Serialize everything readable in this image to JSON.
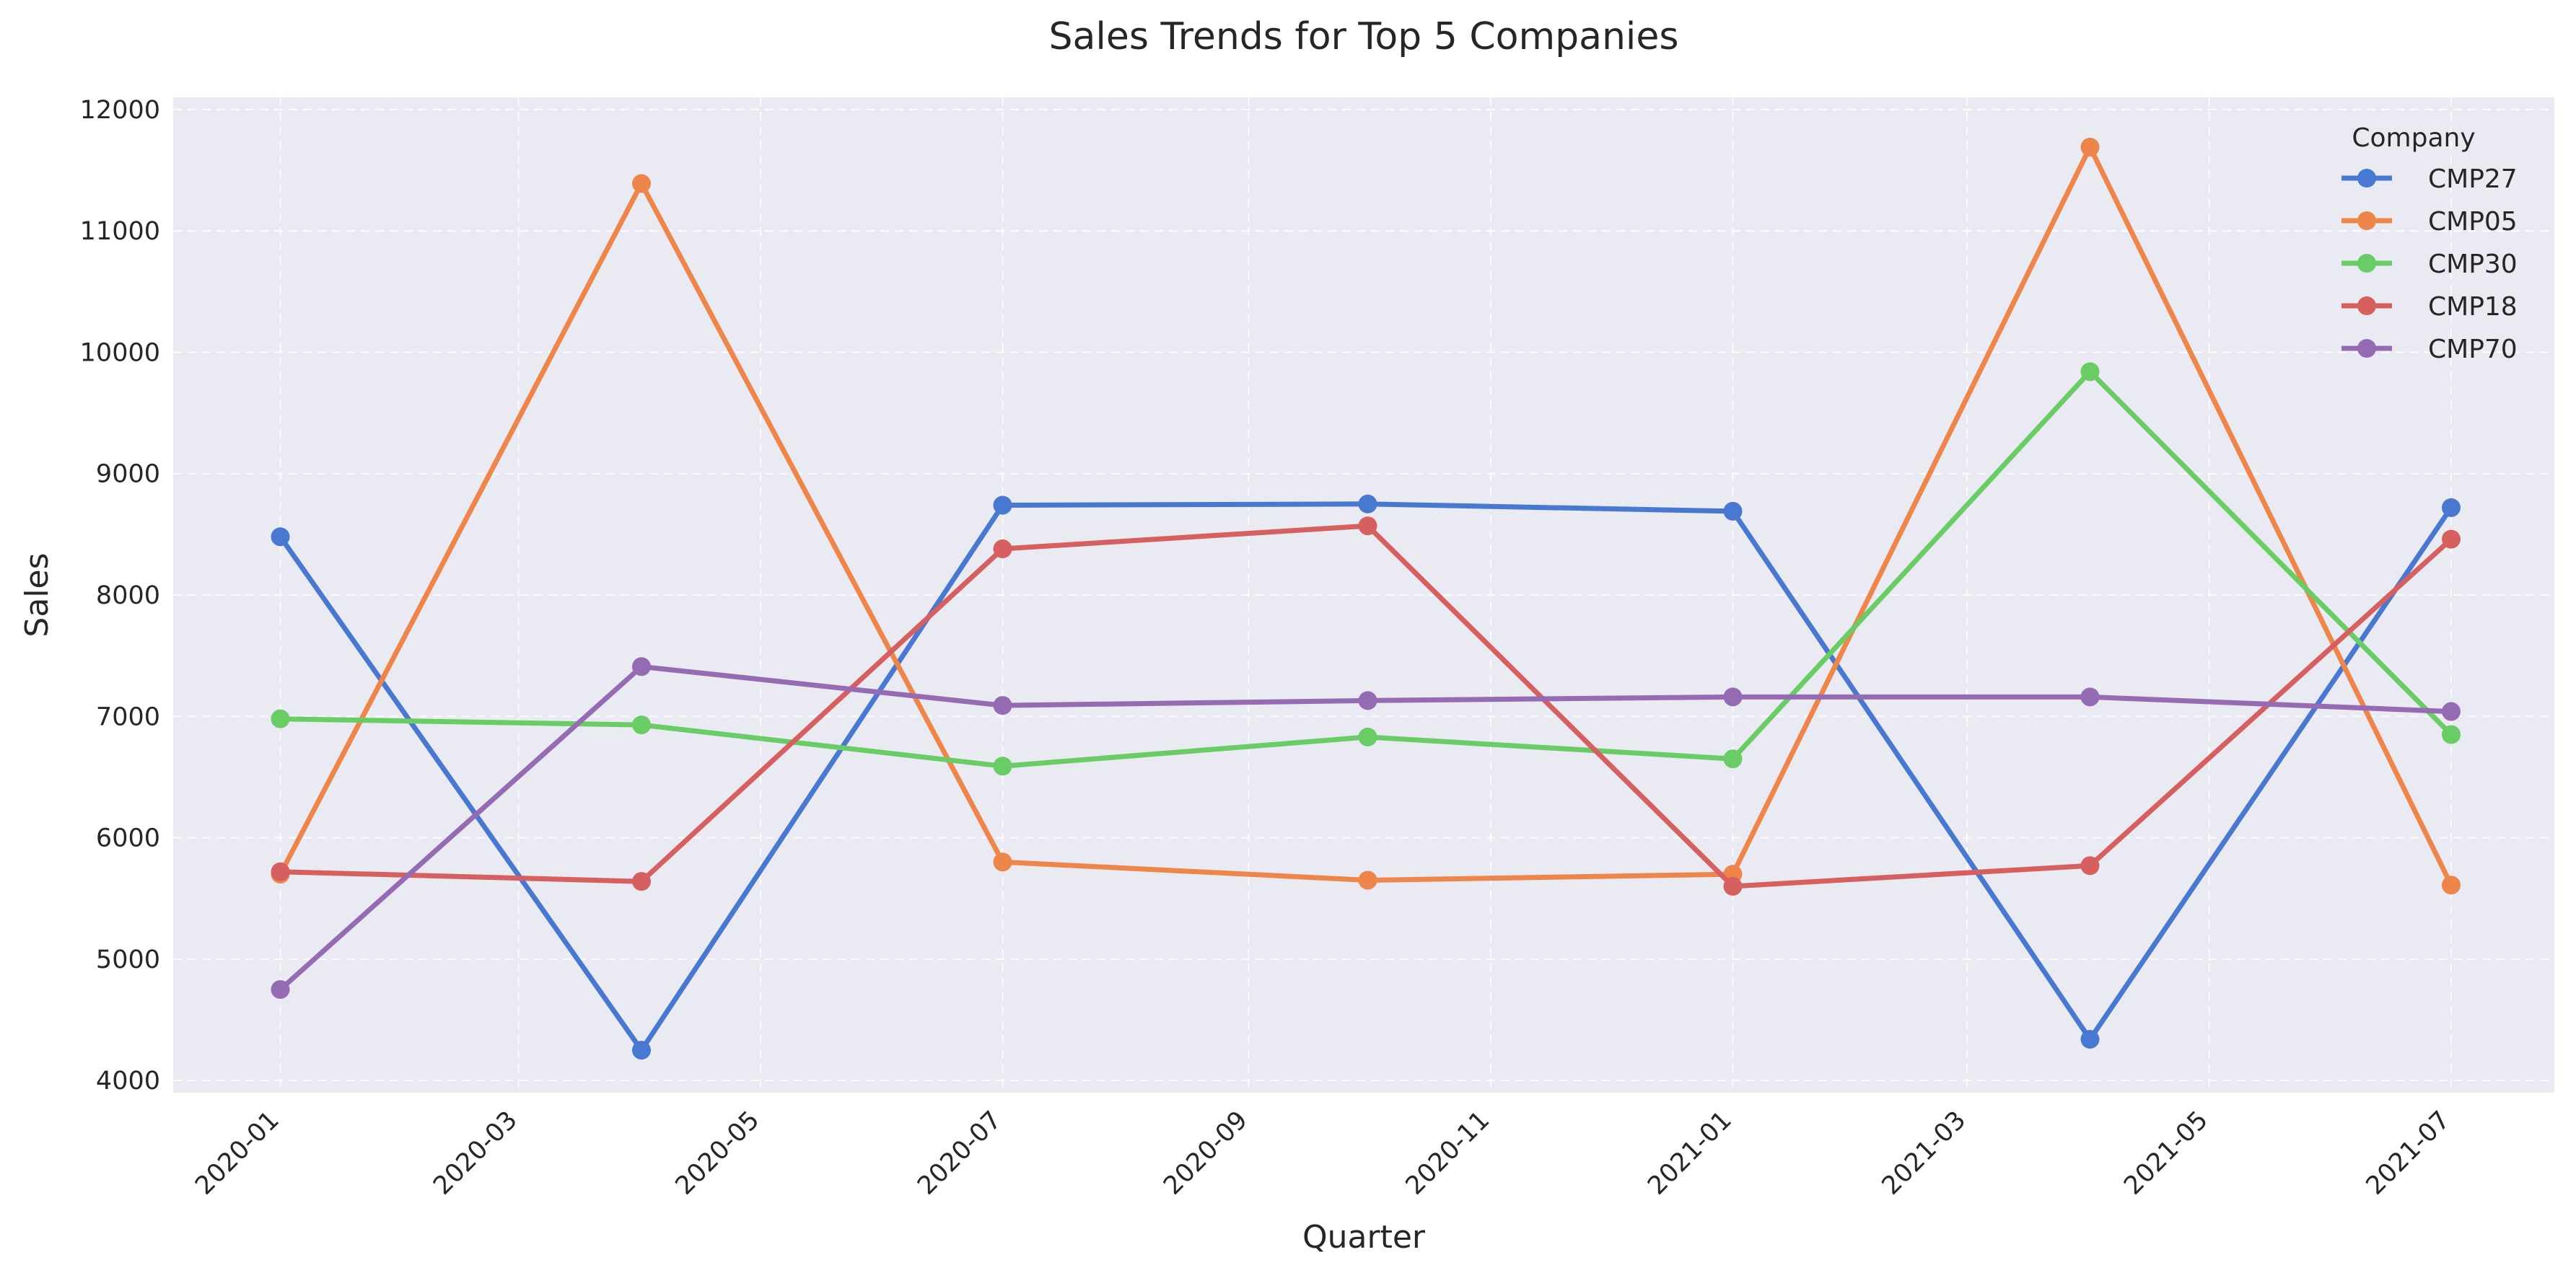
{
  "chart_data": {
    "type": "line",
    "title": "Sales Trends for Top 5 Companies",
    "xlabel": "Quarter",
    "ylabel": "Sales",
    "x": [
      "2020-01-01",
      "2020-04-01",
      "2020-07-01",
      "2020-10-01",
      "2021-01-01",
      "2021-04-01",
      "2021-07-01"
    ],
    "xticks": [
      "2020-01",
      "2020-03",
      "2020-05",
      "2020-07",
      "2020-09",
      "2020-11",
      "2021-01",
      "2021-03",
      "2021-05",
      "2021-07"
    ],
    "xlim": [
      "2019-12-05",
      "2021-07-27"
    ],
    "ylim": [
      3900,
      12100
    ],
    "yticks": [
      4000,
      5000,
      6000,
      7000,
      8000,
      9000,
      10000,
      11000,
      12000
    ],
    "grid": true,
    "legend": {
      "title": "Company",
      "position": "top-right"
    },
    "series": [
      {
        "name": "CMP27",
        "color": "#4878d0",
        "values": [
          8480,
          4250,
          8740,
          8750,
          8690,
          4340,
          8720
        ]
      },
      {
        "name": "CMP05",
        "color": "#ee854a",
        "values": [
          5700,
          11390,
          5800,
          5650,
          5700,
          11690,
          5610
        ]
      },
      {
        "name": "CMP30",
        "color": "#6acc64",
        "values": [
          6980,
          6930,
          6590,
          6830,
          6650,
          9840,
          6850
        ]
      },
      {
        "name": "CMP18",
        "color": "#d65f5f",
        "values": [
          5720,
          5640,
          8380,
          8570,
          5600,
          5770,
          8460
        ]
      },
      {
        "name": "CMP70",
        "color": "#956cb4",
        "values": [
          4750,
          7410,
          7090,
          7130,
          7160,
          7160,
          7040
        ]
      }
    ]
  }
}
